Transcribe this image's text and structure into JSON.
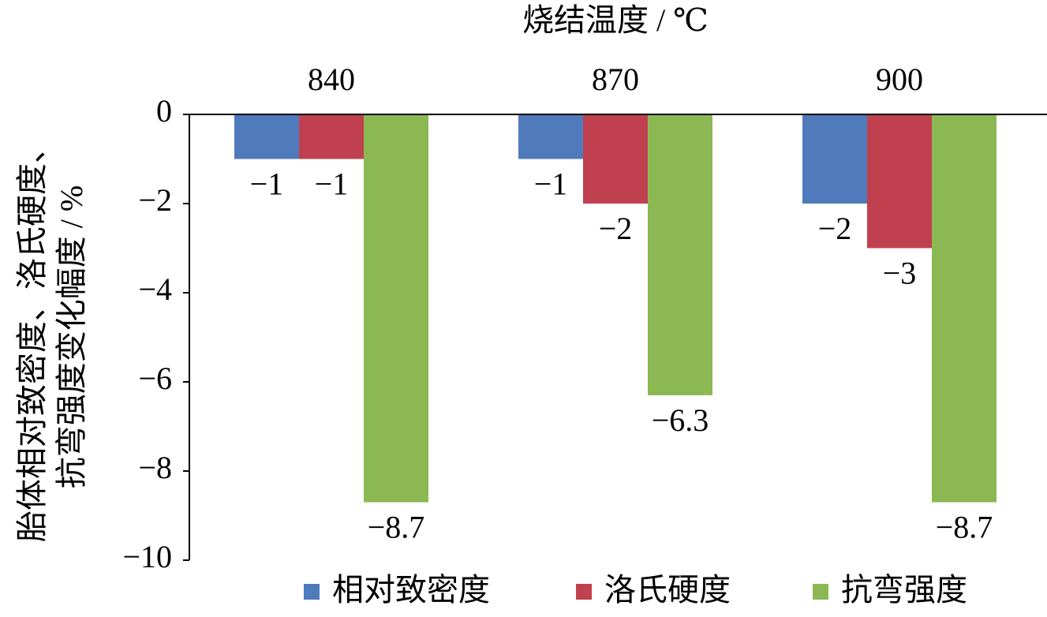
{
  "chart_data": {
    "type": "bar",
    "title": "烧结温度 / ℃",
    "ylabel": [
      "胎体相对致密度、洛氏硬度、",
      "抗弯强度变化幅度 / %"
    ],
    "categories": [
      "840",
      "870",
      "900"
    ],
    "series": [
      {
        "name": "相对致密度",
        "color": "#4f7bbc",
        "values": [
          -1,
          -1,
          -2
        ],
        "value_labels": [
          "−1",
          "−1",
          "−2"
        ]
      },
      {
        "name": "洛氏硬度",
        "color": "#c0404f",
        "values": [
          -1,
          -2,
          -3
        ],
        "value_labels": [
          "−1",
          "−2",
          "−3"
        ]
      },
      {
        "name": "抗弯强度",
        "color": "#8cb854",
        "values": [
          -8.7,
          -6.3,
          -8.7
        ],
        "value_labels": [
          "−8.7",
          "−6.3",
          "−8.7"
        ]
      }
    ],
    "ylim": [
      0,
      -10
    ],
    "yticks": [
      0,
      {
        "value": -2,
        "label": "−2"
      },
      {
        "value": -4,
        "label": "−4"
      },
      {
        "value": -6,
        "label": "−6"
      },
      {
        "value": -8,
        "label": "−8"
      },
      {
        "value": -10,
        "label": "−10"
      }
    ],
    "legend": "bottom"
  }
}
